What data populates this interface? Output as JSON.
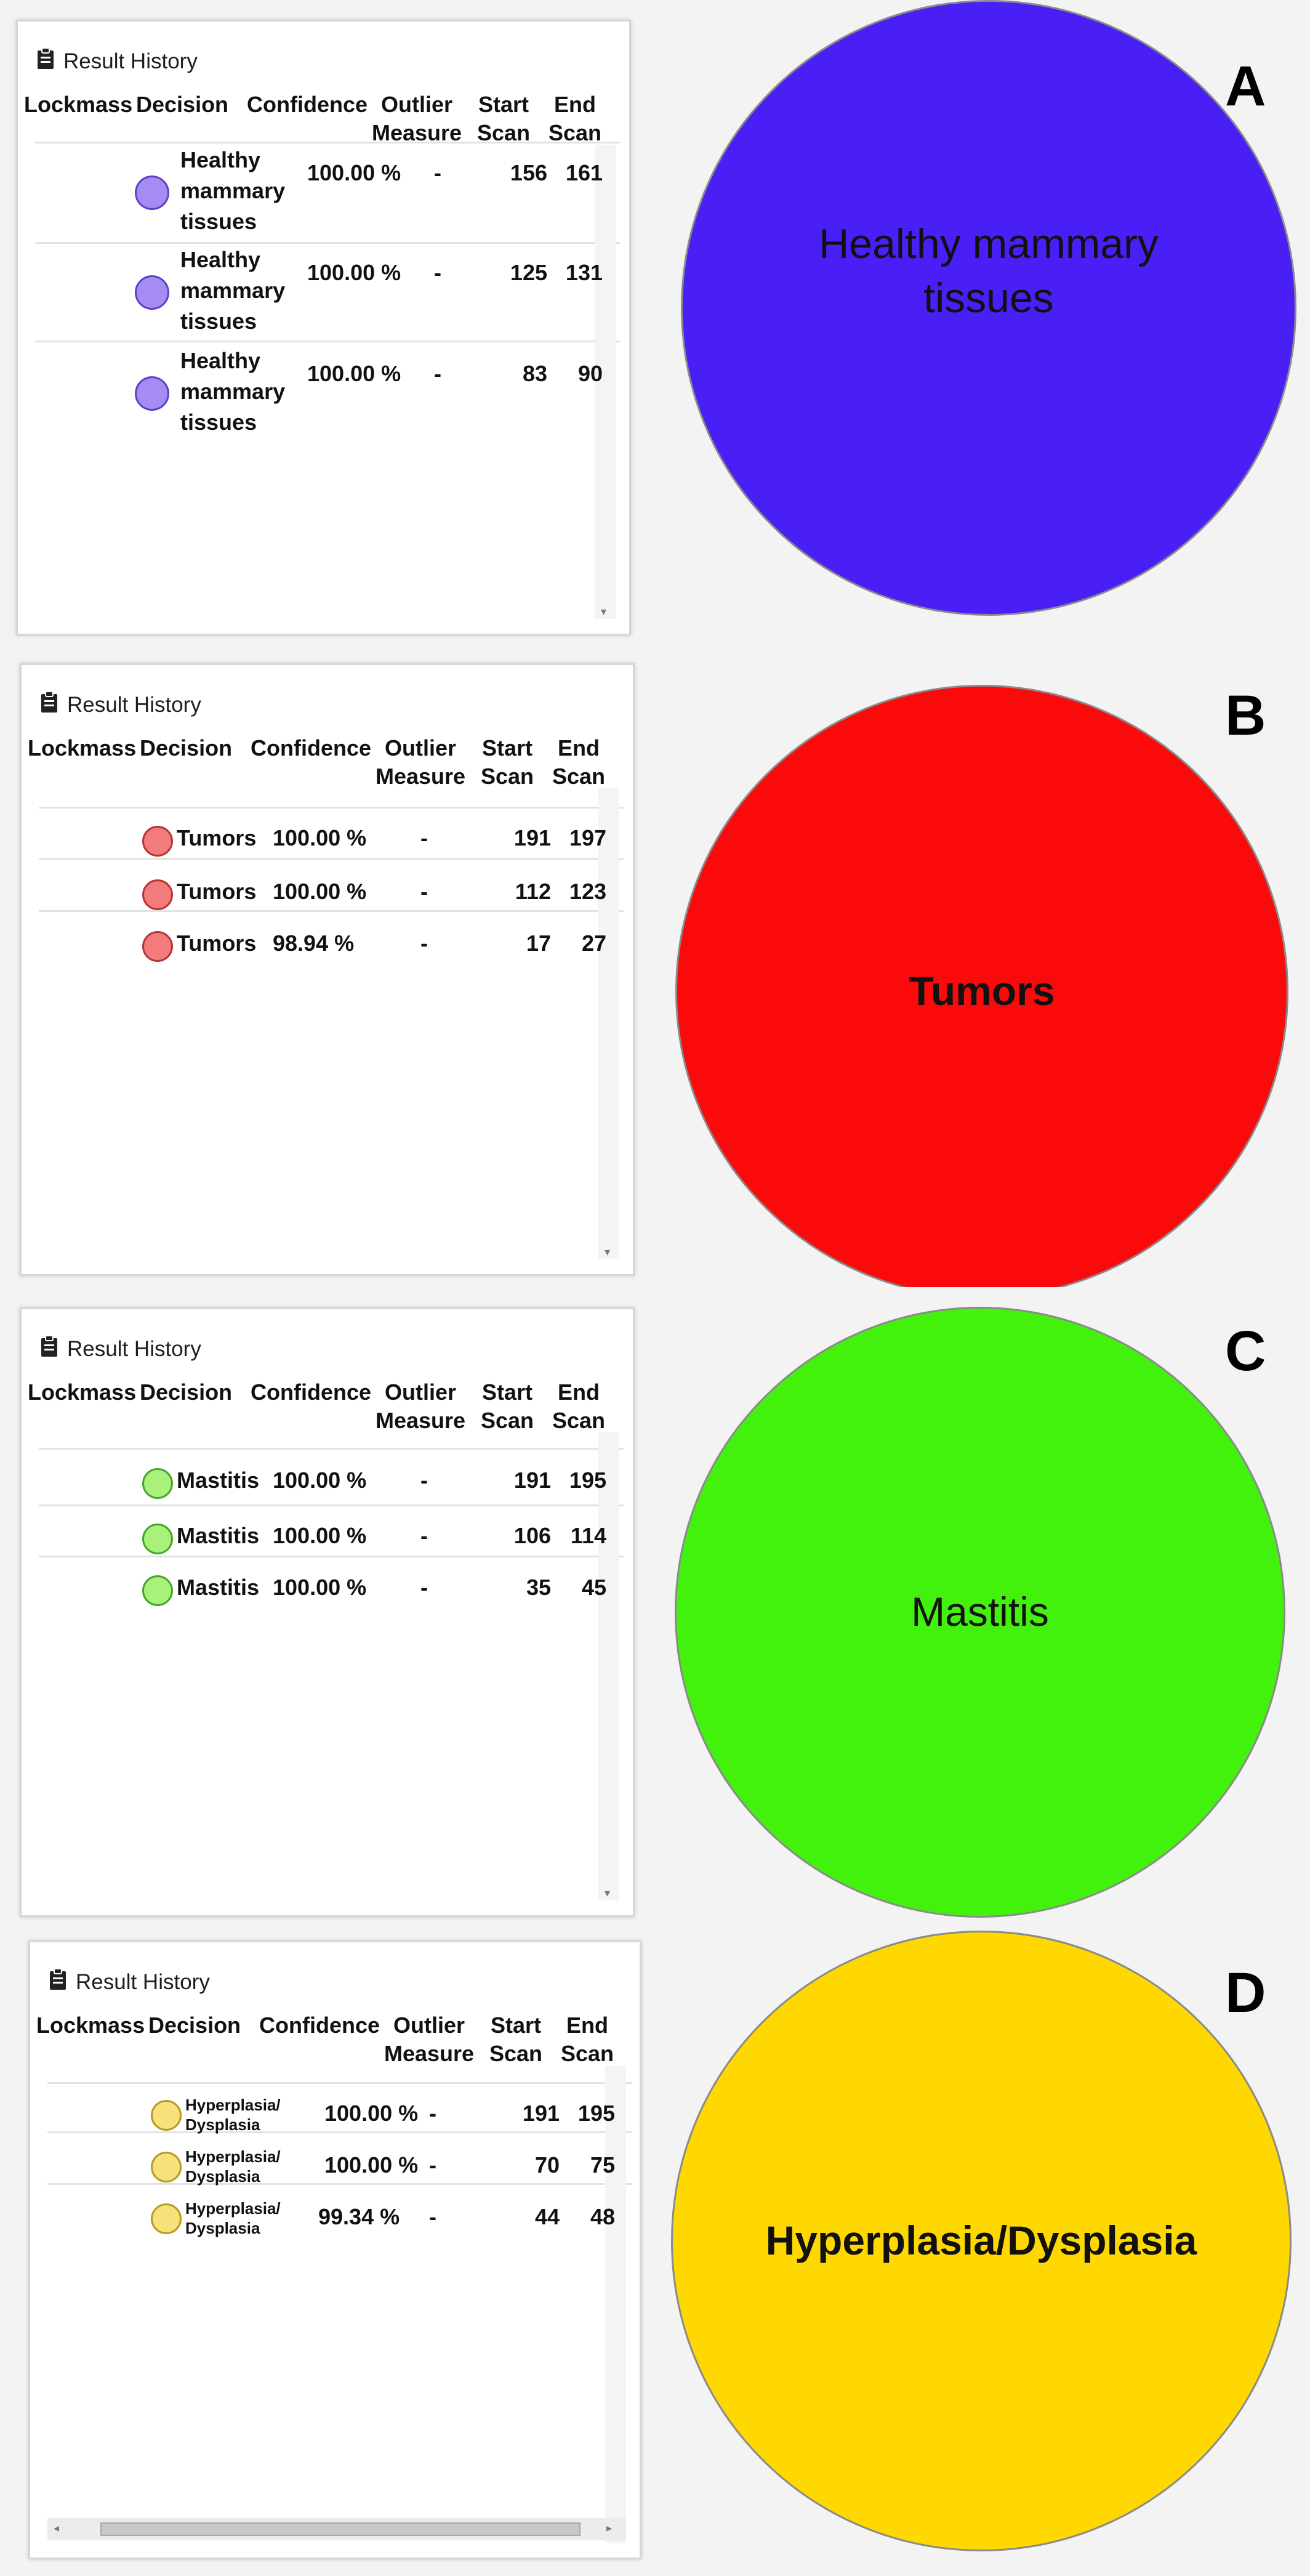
{
  "panels": [
    {
      "letter": "A",
      "title": "Result History",
      "headers": [
        "Lockmass",
        "Decision",
        "Confidence",
        "Outlier\nMeasure",
        "Start\nScan",
        "End\nScan"
      ],
      "rows": [
        {
          "decision": "Healthy\nmammary\ntissues",
          "confidence": "100.00 %",
          "outlier": "-",
          "start": "156",
          "end": "161"
        },
        {
          "decision": "Healthy\nmammary\ntissues",
          "confidence": "100.00 %",
          "outlier": "-",
          "start": "125",
          "end": "131"
        },
        {
          "decision": "Healthy\nmammary\ntissues",
          "confidence": "100.00 %",
          "outlier": "-",
          "start": "83",
          "end": "90"
        }
      ],
      "dot_fill": "#a58cf2",
      "dot_border": "#5b3fc8",
      "circle_label": "Healthy mammary\ntissues",
      "circle_color": "#4a1ff5"
    },
    {
      "letter": "B",
      "title": "Result History",
      "headers": [
        "Lockmass",
        "Decision",
        "Confidence",
        "Outlier\nMeasure",
        "Start\nScan",
        "End\nScan"
      ],
      "rows": [
        {
          "decision": "Tumors",
          "confidence": "100.00 %",
          "outlier": "-",
          "start": "191",
          "end": "197"
        },
        {
          "decision": "Tumors",
          "confidence": "100.00 %",
          "outlier": "-",
          "start": "112",
          "end": "123"
        },
        {
          "decision": "Tumors",
          "confidence": "98.94 %",
          "outlier": "-",
          "start": "17",
          "end": "27"
        }
      ],
      "dot_fill": "#f47b7b",
      "dot_border": "#b53434",
      "circle_label": "Tumors",
      "circle_color": "#fa0a0a"
    },
    {
      "letter": "C",
      "title": "Result History",
      "headers": [
        "Lockmass",
        "Decision",
        "Confidence",
        "Outlier\nMeasure",
        "Start\nScan",
        "End\nScan"
      ],
      "rows": [
        {
          "decision": "Mastitis",
          "confidence": "100.00 %",
          "outlier": "-",
          "start": "191",
          "end": "195"
        },
        {
          "decision": "Mastitis",
          "confidence": "100.00 %",
          "outlier": "-",
          "start": "106",
          "end": "114"
        },
        {
          "decision": "Mastitis",
          "confidence": "100.00 %",
          "outlier": "-",
          "start": "35",
          "end": "45"
        }
      ],
      "dot_fill": "#a8f27c",
      "dot_border": "#46a528",
      "circle_label": "Mastitis",
      "circle_color": "#42f20d"
    },
    {
      "letter": "D",
      "title": "Result History",
      "headers": [
        "Lockmass",
        "Decision",
        "Confidence",
        "Outlier\nMeasure",
        "Start\nScan",
        "End\nScan"
      ],
      "rows": [
        {
          "decision": "Hyperplasia/\nDysplasia",
          "confidence": "100.00 %",
          "outlier": "-",
          "start": "191",
          "end": "195"
        },
        {
          "decision": "Hyperplasia/\nDysplasia",
          "confidence": "100.00 %",
          "outlier": "-",
          "start": "70",
          "end": "75"
        },
        {
          "decision": "Hyperplasia/\nDysplasia",
          "confidence": "99.34 %",
          "outlier": "-",
          "start": "44",
          "end": "48"
        }
      ],
      "dot_fill": "#f8e07a",
      "dot_border": "#b79a22",
      "circle_label": "Hyperplasia/Dysplasia",
      "circle_color": "#fed800"
    }
  ],
  "icons": {
    "clipboard": "clipboard-icon",
    "scroll_up": "scroll-up-arrow-icon",
    "scroll_down": "scroll-down-arrow-icon",
    "scroll_left": "scroll-left-arrow-icon",
    "scroll_right": "scroll-right-arrow-icon"
  }
}
